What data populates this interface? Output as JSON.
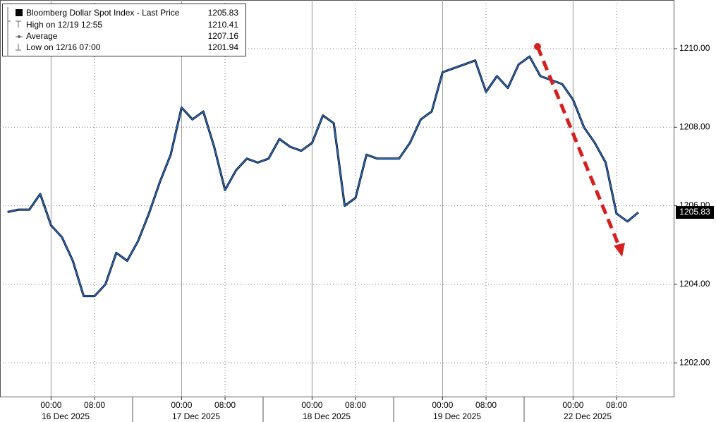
{
  "chart_data": {
    "type": "line",
    "series": [
      {
        "name": "Bloomberg Dollar Spot Index - Last Price",
        "color": "#2b6cc4",
        "values": [
          1205.84,
          1205.9,
          1205.9,
          1206.3,
          1205.5,
          1205.2,
          1204.6,
          1203.7,
          1203.7,
          1204.0,
          1204.8,
          1204.6,
          1205.1,
          1205.8,
          1206.6,
          1207.3,
          1208.5,
          1208.2,
          1208.4,
          1207.5,
          1206.4,
          1206.9,
          1207.2,
          1207.1,
          1207.2,
          1207.7,
          1207.5,
          1207.4,
          1207.6,
          1208.3,
          1208.1,
          1206.0,
          1206.2,
          1207.3,
          1207.2,
          1207.2,
          1207.2,
          1207.6,
          1208.2,
          1208.4,
          1209.4,
          1209.5,
          1209.6,
          1209.7,
          1208.9,
          1209.3,
          1209.0,
          1209.6,
          1209.8,
          1209.3,
          1209.2,
          1209.1,
          1208.7,
          1208.0,
          1207.6,
          1207.1,
          1205.8,
          1205.6,
          1205.83,
          null
        ]
      }
    ],
    "last_price": 1205.83,
    "stats": [
      {
        "label": "High on 12/19 12:55",
        "value": 1210.41
      },
      {
        "label": "Average",
        "value": 1207.16
      },
      {
        "label": "Low on 12/16 07:00",
        "value": 1201.94
      }
    ],
    "categories": [
      null,
      null,
      null,
      null,
      "00:00",
      null,
      null,
      null,
      "08:00",
      null,
      null,
      null,
      null,
      null,
      null,
      null,
      "00:00",
      null,
      null,
      null,
      "08:00",
      null,
      null,
      null,
      null,
      null,
      null,
      null,
      "00:00",
      null,
      null,
      null,
      "08:00",
      null,
      null,
      null,
      null,
      null,
      null,
      null,
      "00:00",
      null,
      null,
      null,
      "08:00",
      null,
      null,
      null,
      null,
      null,
      null,
      null,
      "00:00",
      null,
      null,
      null,
      "08:00",
      null,
      null,
      null
    ],
    "date_labels": [
      "16 Dec 2025",
      "17 Dec 2025",
      "18 Dec 2025",
      "19 Dec 2025",
      "22 Dec 2025"
    ],
    "ylim": [
      1201.14,
      1211.24
    ],
    "yticks": [
      {
        "value": 1202,
        "label": "1202.00"
      },
      {
        "value": 1204,
        "label": "1204.00"
      },
      {
        "value": 1206,
        "label": "1206.00"
      },
      {
        "value": 1208,
        "label": "1208.00"
      },
      {
        "value": 1210,
        "label": "1210.00"
      }
    ],
    "grid": true
  }
}
